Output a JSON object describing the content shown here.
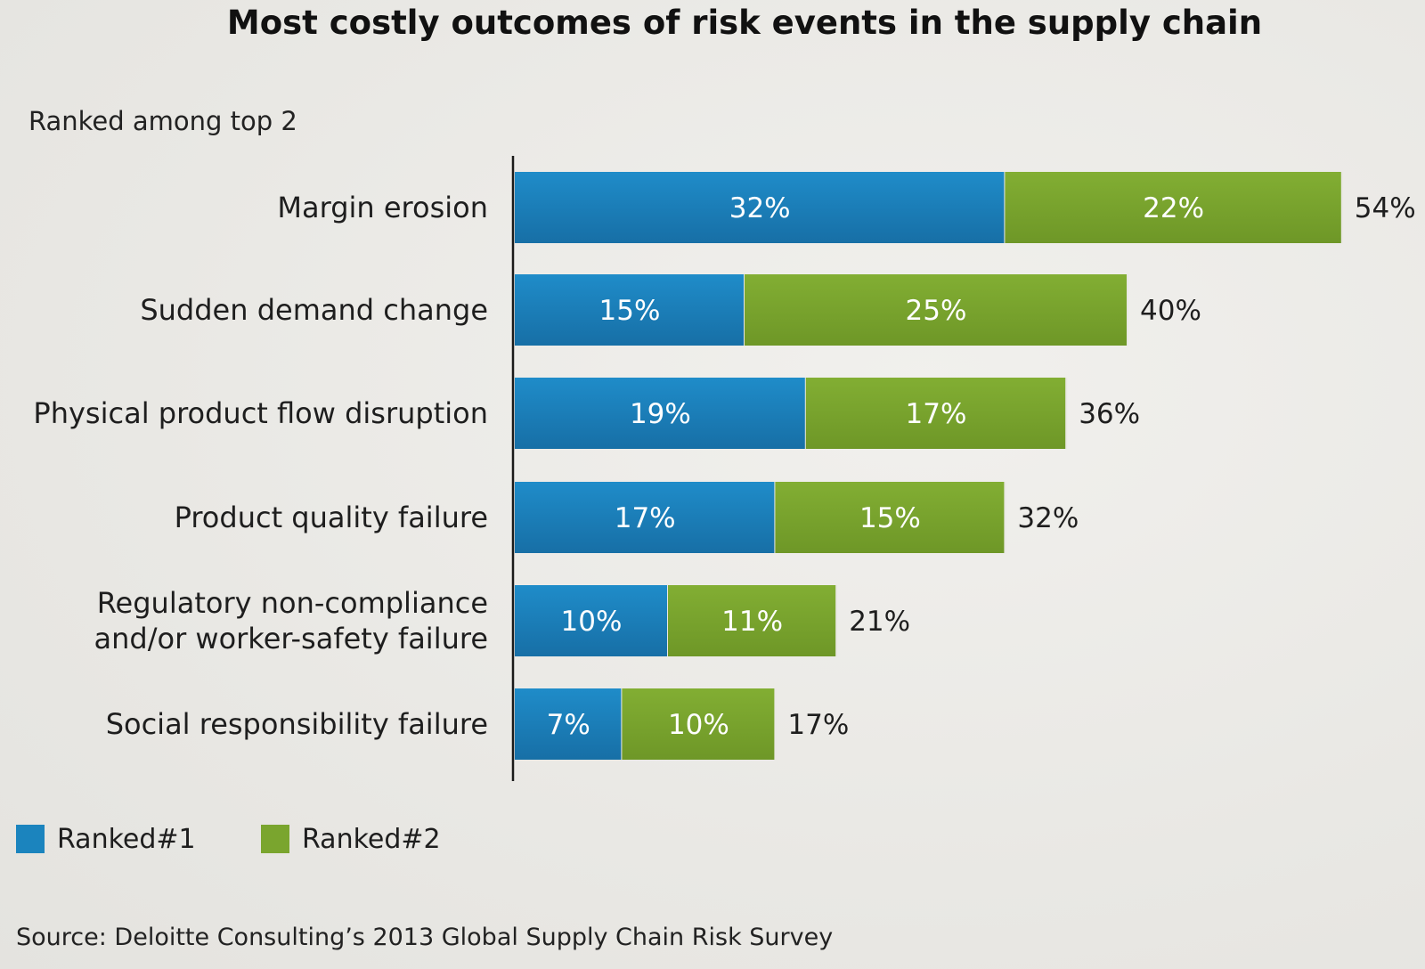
{
  "chart_data": {
    "type": "bar",
    "orientation": "horizontal",
    "stacked": true,
    "title": "Most costly outcomes of risk events in the supply chain",
    "subtitle": "Ranked among  top 2",
    "categories": [
      [
        "Margin erosion"
      ],
      [
        "Sudden demand change"
      ],
      [
        "Physical product flow disruption"
      ],
      [
        "Product quality failure"
      ],
      [
        "Regulatory non-compliance",
        "and/or worker-safety failure"
      ],
      [
        "Social responsibility failure"
      ]
    ],
    "series": [
      {
        "name": "Ranked#1",
        "color": "#1b84be",
        "values": [
          32,
          15,
          19,
          17,
          10,
          7
        ],
        "labels": [
          "32%",
          "15%",
          "19%",
          "17%",
          "10%",
          "7%"
        ]
      },
      {
        "name": "Ranked#2",
        "color": "#7aa52e",
        "values": [
          22,
          25,
          17,
          15,
          11,
          10
        ],
        "labels": [
          "22%",
          "25%",
          "17%",
          "15%",
          "11%",
          "10%"
        ]
      }
    ],
    "totals": [
      54,
      40,
      36,
      32,
      21,
      17
    ],
    "total_labels": [
      "54%",
      "40%",
      "36%",
      "32%",
      "21%",
      "17%"
    ],
    "xlim": [
      0,
      54
    ],
    "grid": false,
    "legend_position": "bottom-left",
    "source": "Source: Deloitte Consulting’s 2013 Global Supply Chain Risk Survey"
  }
}
